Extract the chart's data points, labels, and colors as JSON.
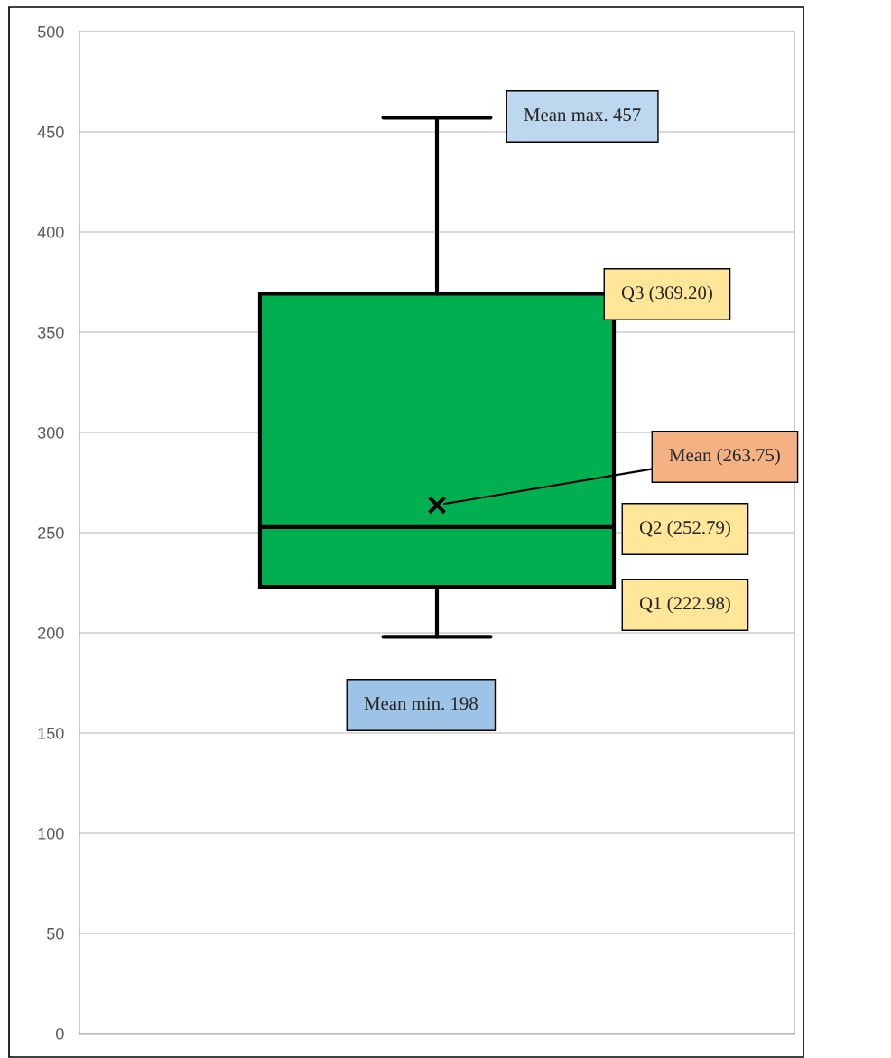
{
  "chart_data": {
    "type": "box",
    "categories": [
      null
    ],
    "series": [
      {
        "color": "#00b050",
        "boxes": [
          {
            "low": 198,
            "q1": 222.98,
            "median": 252.79,
            "q3": 369.2,
            "high": 457,
            "mean": 263.75
          }
        ]
      }
    ],
    "ylim": [
      0,
      500
    ],
    "yticks": [
      0,
      50,
      100,
      150,
      200,
      250,
      300,
      350,
      400,
      450,
      500
    ],
    "grid": "y",
    "annotations": [
      "Mean max. 457",
      "Q3 (369.20)",
      "Mean (263.75)",
      "Q2 (252.79)",
      "Q1 (222.98)",
      "Mean min. 198"
    ]
  }
}
